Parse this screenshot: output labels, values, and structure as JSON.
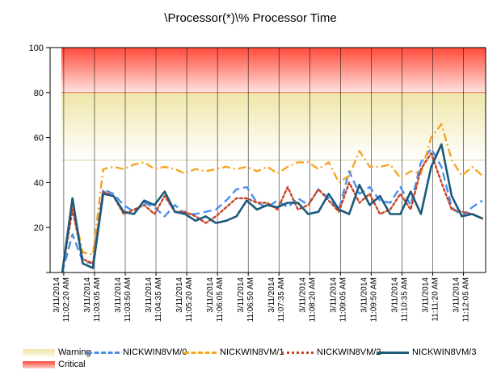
{
  "chart_data": {
    "type": "line",
    "title": "\\Processor(*)\\% Processor Time",
    "xlabel": "",
    "ylabel": "",
    "ylim": [
      0,
      100
    ],
    "yticks": [
      "20",
      "40",
      "60",
      "80",
      "100"
    ],
    "grid": "vertical",
    "x_tick_labels": [
      "3/11/2014 11:02:20 AM",
      "3/11/2014 11:03:05 AM",
      "3/11/2014 11:03:50 AM",
      "3/11/2014 11:04:35 AM",
      "3/11/2014 11:05:20 AM",
      "3/11/2014 11:06:05 AM",
      "3/11/2014 11:06:50 AM",
      "3/11/2014 11:07:35 AM",
      "3/11/2014 11:08:20 AM",
      "3/11/2014 11:09:05 AM",
      "3/11/2014 11:09:50 AM",
      "3/11/2014 11:10:35 AM",
      "3/11/2014 11:11:20 AM",
      "3/11/2014 11:12:05 AM"
    ],
    "bands": [
      {
        "name": "Warning",
        "from": 50,
        "to": 80,
        "color_top": "#f3ecb4",
        "color_bottom": "#ffffff"
      },
      {
        "name": "Critical",
        "from": 80,
        "to": 100,
        "color_top": "#ff4a3a",
        "color_bottom": "#ffe3df"
      }
    ],
    "series": [
      {
        "name": "NICKWIN8VM/0",
        "color": "#4a8ff0",
        "dash": "10,5",
        "values": [
          0,
          17,
          5,
          4,
          37,
          35,
          30,
          27,
          31,
          29,
          25,
          30,
          26,
          26,
          27,
          28,
          32,
          37,
          38,
          31,
          29,
          32,
          29,
          33,
          30,
          37,
          33,
          28,
          45,
          35,
          38,
          32,
          31,
          38,
          30,
          49,
          55,
          47,
          29,
          25,
          29,
          32
        ]
      },
      {
        "name": "NICKWIN8VM/1",
        "color": "#f5a623",
        "dash": "10,4,2,4",
        "values": [
          0,
          30,
          9,
          8,
          46,
          47,
          46,
          48,
          49,
          46,
          47,
          46,
          44,
          46,
          45,
          46,
          47,
          46,
          47,
          45,
          47,
          44,
          47,
          49,
          49,
          46,
          49,
          40,
          43,
          54,
          47,
          47,
          48,
          42,
          45,
          44,
          60,
          66,
          50,
          43,
          47,
          43
        ]
      },
      {
        "name": "NICKWIN8VM/2",
        "color": "#c84425",
        "dash": "3,3",
        "values": [
          0,
          28,
          6,
          4,
          36,
          34,
          26,
          28,
          30,
          26,
          34,
          27,
          27,
          25,
          22,
          25,
          29,
          33,
          33,
          31,
          31,
          28,
          38,
          28,
          30,
          37,
          32,
          27,
          40,
          31,
          35,
          26,
          28,
          35,
          28,
          46,
          53,
          40,
          28,
          27,
          26,
          24
        ]
      },
      {
        "name": "NICKWIN8VM/3",
        "color": "#1a5a7a",
        "dash": "",
        "values": [
          0,
          33,
          4,
          2,
          35,
          34,
          27,
          26,
          32,
          30,
          36,
          27,
          26,
          23,
          25,
          22,
          23,
          25,
          32,
          28,
          30,
          29,
          31,
          31,
          26,
          27,
          35,
          28,
          26,
          39,
          30,
          34,
          26,
          26,
          36,
          26,
          47,
          57,
          34,
          25,
          26,
          24
        ]
      }
    ]
  },
  "legend": {
    "warning": "Warning",
    "critical": "Critical",
    "s0": "NICKWIN8VM/0",
    "s1": "NICKWIN8VM/1",
    "s2": "NICKWIN8VM/2",
    "s3": "NICKWIN8VM/3"
  },
  "colors": {
    "warning": "#f3ecb4",
    "critical": "#ff6a5a",
    "axis": "#000000",
    "grid": "#000000"
  }
}
